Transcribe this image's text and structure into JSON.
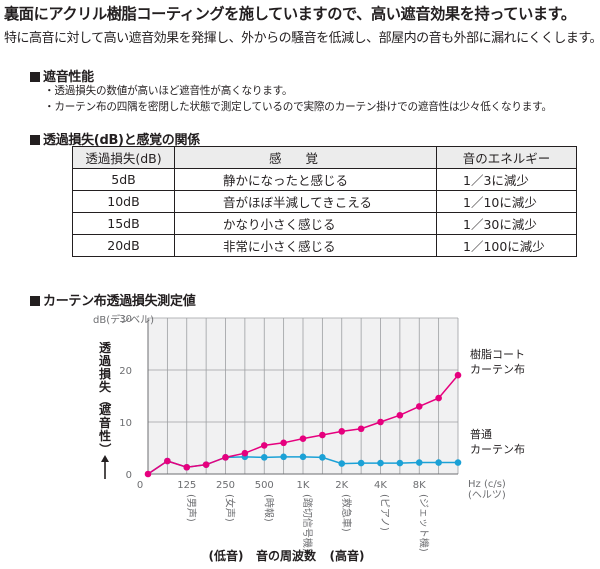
{
  "headline": "裏面にアクリル樹脂コーティングを施していますので、高い遮音効果を持っています。",
  "subline": "特に高音に対して高い遮音効果を発揮し、外からの騒音を低減し、部屋内の音も外部に漏れにくくします。",
  "section1": {
    "title": "遮音性能",
    "notes": [
      "・透過損失の数値が高いほど遮音性が高くなります。",
      "・カーテン布の四隅を密閉した状態で測定しているので実際のカーテン掛けでの遮音性は少々低くなります。"
    ]
  },
  "section2": {
    "title": "透過損失(dB)と感覚の関係",
    "headers": [
      "透過損失(dB)",
      "感覚",
      "音のエネルギー"
    ],
    "rows": [
      [
        "5dB",
        "静かになったと感じる",
        "1／3に減少"
      ],
      [
        "10dB",
        "音がほぼ半減してきこえる",
        "1／10に減少"
      ],
      [
        "15dB",
        "かなり小さく感じる",
        "1／30に減少"
      ],
      [
        "20dB",
        "非常に小さく感じる",
        "1／100に減少"
      ]
    ]
  },
  "section3": {
    "title": "カーテン布透過損失測定値"
  },
  "colors": {
    "coated": "#e6007e",
    "plain": "#1ba1d6",
    "grid": "#9d9fa2",
    "panel": "#f1f1f2"
  },
  "chart_data": {
    "type": "line",
    "ylabel": "透過損失（遮音性）",
    "yunit": "dB(デシベル)",
    "ylim": [
      0,
      30
    ],
    "yticks": [
      "0",
      "10",
      "20",
      "30"
    ],
    "x_positions": [
      0,
      0.5,
      1,
      1.5,
      2,
      2.5,
      3,
      3.5,
      4,
      4.5,
      5,
      5.5,
      6,
      6.5,
      7,
      7.5,
      8
    ],
    "xticks": [
      "125",
      "250",
      "500",
      "1K",
      "2K",
      "4K",
      "8K"
    ],
    "xunit": "Hz (c/s)",
    "xunit2": "(ヘルツ)",
    "x_examples": [
      "(男声)",
      "(女声)",
      "(時報)",
      "(踏切信号機)",
      "(救急車)",
      "(ピアノ)",
      "(ジェット機)"
    ],
    "xaxis_bottom": {
      "low": "(低音)",
      "label": "音の周波数",
      "high": "(高音)"
    },
    "series": [
      {
        "name": "樹脂コート\nカーテン布",
        "label_lines": [
          "樹脂コート",
          "カーテン布"
        ],
        "values": [
          0,
          2.5,
          1.3,
          1.8,
          3.2,
          4.0,
          5.5,
          6.0,
          6.8,
          7.5,
          8.2,
          8.7,
          10.0,
          11.3,
          13.0,
          14.6,
          19.0
        ]
      },
      {
        "name": "普通\nカーテン布",
        "label_lines": [
          "普通",
          "カーテン布"
        ],
        "values": [
          0,
          2.5,
          1.3,
          1.8,
          3.2,
          3.3,
          3.2,
          3.3,
          3.3,
          3.2,
          2.0,
          2.1,
          2.1,
          2.1,
          2.2,
          2.2,
          2.2
        ]
      }
    ]
  }
}
